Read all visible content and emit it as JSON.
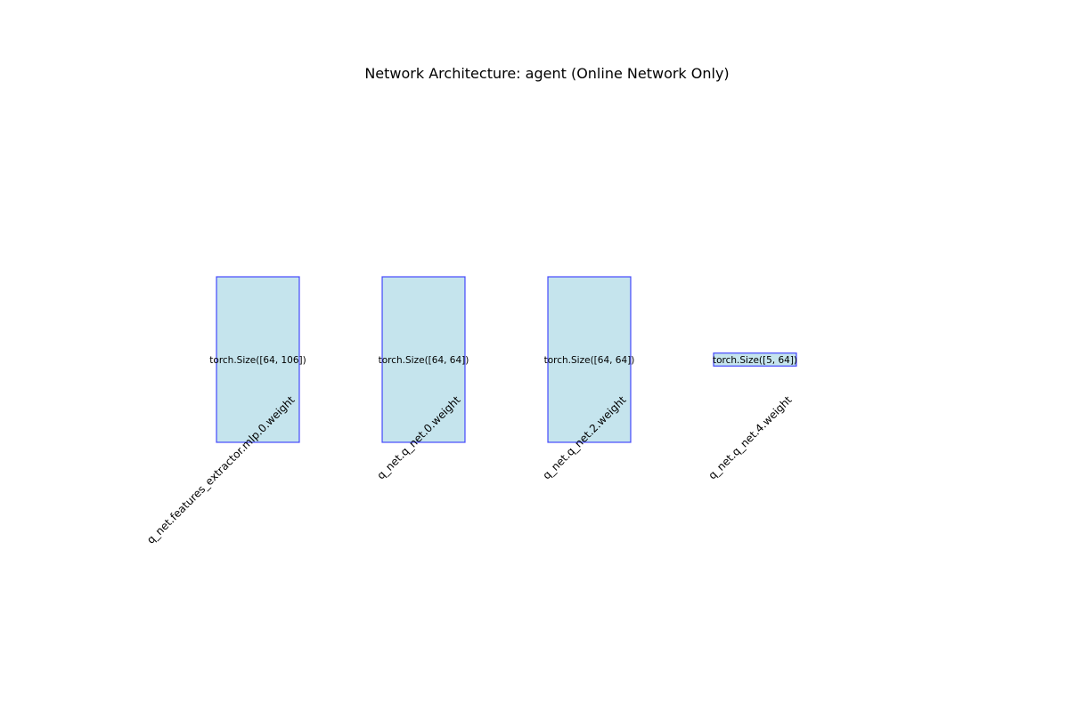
{
  "title": "Network Architecture: agent (Online Network Only)",
  "colors": {
    "box_fill": "#add8e6",
    "box_stroke": "#0000ff"
  },
  "layers": [
    {
      "name": "q_net.features_extractor.mlp.0.weight",
      "shape": "torch.Size([64, 106])",
      "out_features": 64,
      "in_features": 106
    },
    {
      "name": "q_net.q_net.0.weight",
      "shape": "torch.Size([64, 64])",
      "out_features": 64,
      "in_features": 64
    },
    {
      "name": "q_net.q_net.2.weight",
      "shape": "torch.Size([64, 64])",
      "out_features": 64,
      "in_features": 64
    },
    {
      "name": "q_net.q_net.4.weight",
      "shape": "torch.Size([5, 64])",
      "out_features": 5,
      "in_features": 64
    }
  ]
}
